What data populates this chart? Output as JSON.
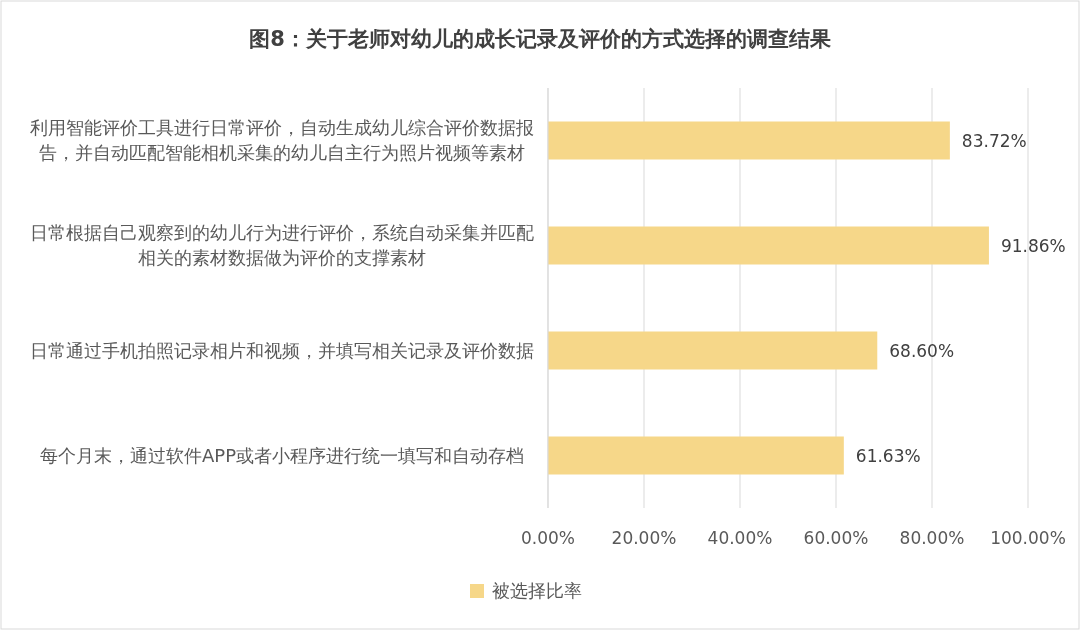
{
  "chart_data": {
    "type": "bar",
    "orientation": "horizontal",
    "title": "图8：关于老师对幼儿的成长记录及评价的方式选择的调查结果",
    "categories": [
      "利用智能评价工具进行日常评价，自动生成幼儿综合评价数据报告，并自动匹配智能相机采集的幼儿自主行为照片视频等素材",
      "日常根据自己观察到的幼儿行为进行评价，系统自动采集并匹配相关的素材数据做为评价的支撑素材",
      "日常通过手机拍照记录相片和视频，并填写相关记录及评价数据",
      "每个月末，通过软件APP或者小程序进行统一填写和自动存档"
    ],
    "series": [
      {
        "name": "被选择比率",
        "color": "#f6d789",
        "values": [
          83.72,
          91.86,
          68.6,
          61.63
        ],
        "value_labels": [
          "83.72%",
          "91.86%",
          "68.60%",
          "61.63%"
        ]
      }
    ],
    "xlim": [
      0,
      100
    ],
    "xticks": [
      {
        "value": 0,
        "label": "0.00%"
      },
      {
        "value": 20,
        "label": "20.00%"
      },
      {
        "value": 40,
        "label": "40.00%"
      },
      {
        "value": 60,
        "label": "60.00%"
      },
      {
        "value": 80,
        "label": "80.00%"
      },
      {
        "value": 100,
        "label": "100.00%"
      }
    ],
    "grid": "x",
    "legend": "bottom"
  }
}
